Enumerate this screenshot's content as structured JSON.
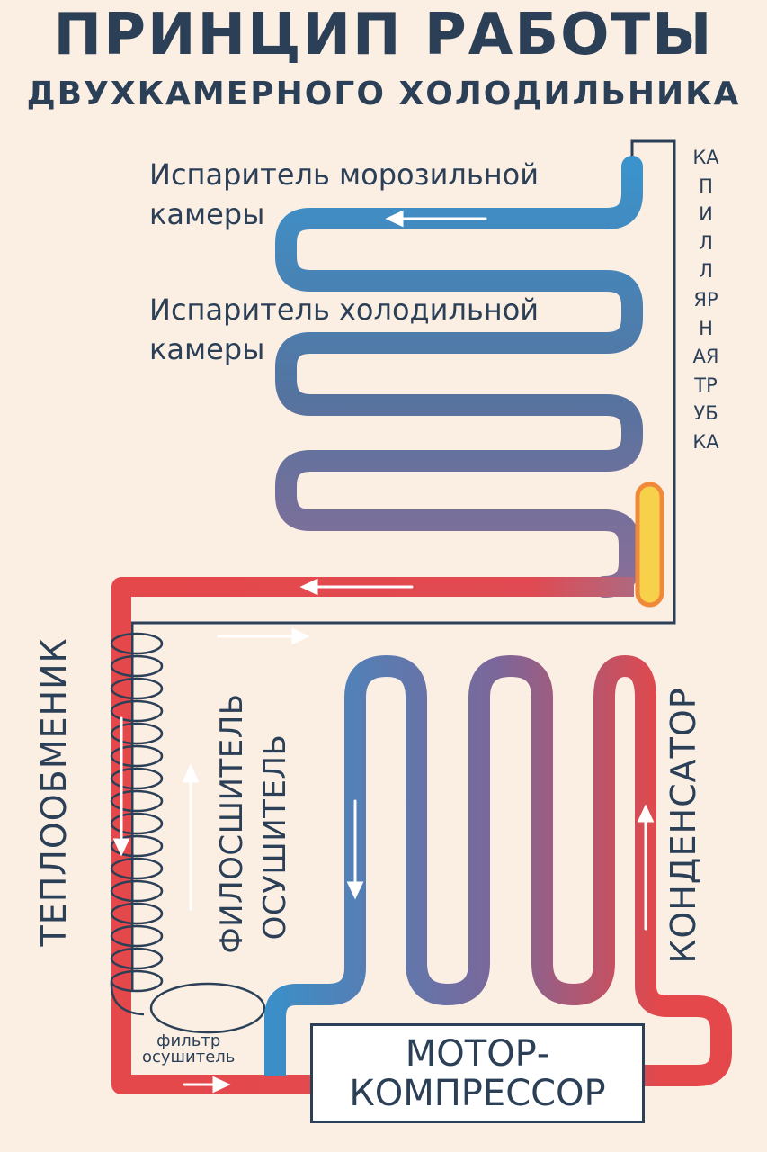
{
  "title": {
    "main": "ПРИНЦИП РАБОТЫ",
    "sub": "ДВУХКАМЕРНОГО ХОЛОДИЛЬНИКА"
  },
  "labels": {
    "freezer_evaporator": "Испаритель морозильной\nкамеры",
    "fridge_evaporator": "Испаритель холодильной\nкамеры",
    "capillary_tube": "КАПИЛЛЯРНАЯТРУБКА",
    "heat_exchanger": "ТЕПЛООБМЕНИК",
    "filter_dryer_vertical_1": "ФИЛОСШИТЕЛЬ",
    "filter_dryer_vertical_2": "ОСУШИТЕЛЬ",
    "filter_dryer_small": "фильтр\nосушитель",
    "condenser": "КОНДЕНСАТОР",
    "compressor": "МОТОР-\nКОМПРЕССОР"
  },
  "colors": {
    "background": "#fbefe4",
    "text": "#2b3f57",
    "cold_pipe": "#3a8fc8",
    "mid_pipe": "#7a6a9c",
    "hot_pipe": "#e5484a",
    "receiver": "#f7d14a",
    "receiver_outline": "#f08a3a",
    "arrows": "#ffffff"
  }
}
